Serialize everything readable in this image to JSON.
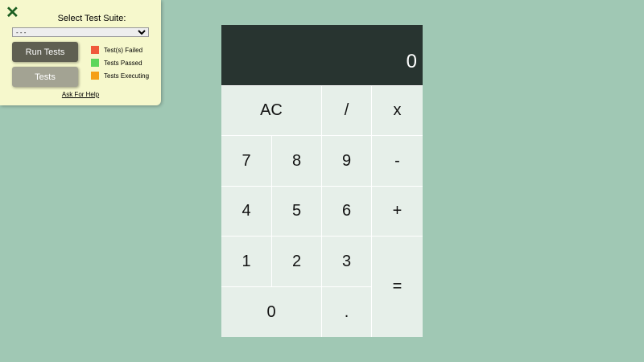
{
  "test_panel": {
    "close_icon": "x-icon",
    "title": "Select Test Suite:",
    "suite_selected": "- - -",
    "run_tests_label": "Run Tests",
    "tests_label": "Tests",
    "legend": [
      {
        "label": "Test(s) Failed",
        "color": "#f05a3c"
      },
      {
        "label": "Tests Passed",
        "color": "#5cd65c"
      },
      {
        "label": "Tests Executing",
        "color": "#f5a017"
      }
    ],
    "help_label": "Ask For Help"
  },
  "calculator": {
    "display": "0",
    "keys": {
      "clear": "AC",
      "divide": "/",
      "multiply": "x",
      "seven": "7",
      "eight": "8",
      "nine": "9",
      "subtract": "-",
      "four": "4",
      "five": "5",
      "six": "6",
      "add": "+",
      "one": "1",
      "two": "2",
      "three": "3",
      "equals": "=",
      "zero": "0",
      "decimal": "."
    }
  }
}
